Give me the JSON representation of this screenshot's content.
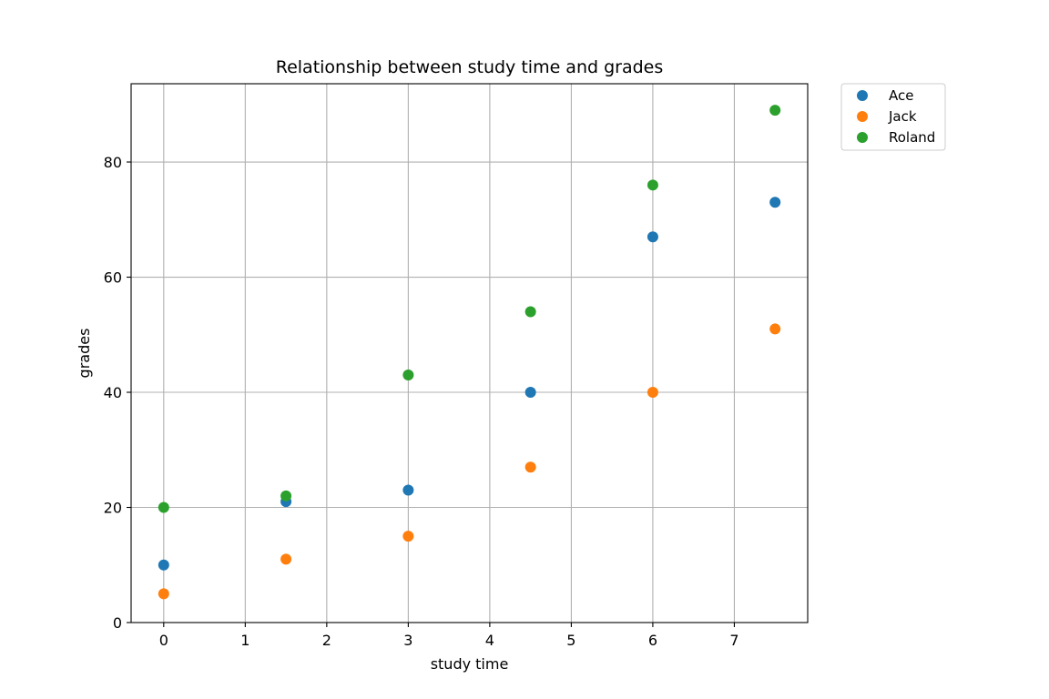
{
  "chart_data": {
    "type": "scatter",
    "title": "Relationship between study time and grades",
    "xlabel": "study time",
    "ylabel": "grades",
    "xlim": [
      -0.4,
      7.9
    ],
    "ylim": [
      0,
      93.6
    ],
    "xticks": [
      0,
      1,
      2,
      3,
      4,
      5,
      6,
      7
    ],
    "yticks": [
      0,
      20,
      40,
      60,
      80
    ],
    "grid": true,
    "legend_position": "outside-top-right",
    "x": [
      0,
      1.5,
      3,
      4.5,
      6,
      7.5
    ],
    "series": [
      {
        "name": "Ace",
        "color": "#1f77b4",
        "values": [
          10,
          21,
          23,
          40,
          67,
          73
        ]
      },
      {
        "name": "Jack",
        "color": "#ff7f0e",
        "values": [
          5,
          11,
          15,
          27,
          40,
          51
        ]
      },
      {
        "name": "Roland",
        "color": "#2ca02c",
        "values": [
          20,
          22,
          43,
          54,
          76,
          89
        ]
      }
    ]
  }
}
